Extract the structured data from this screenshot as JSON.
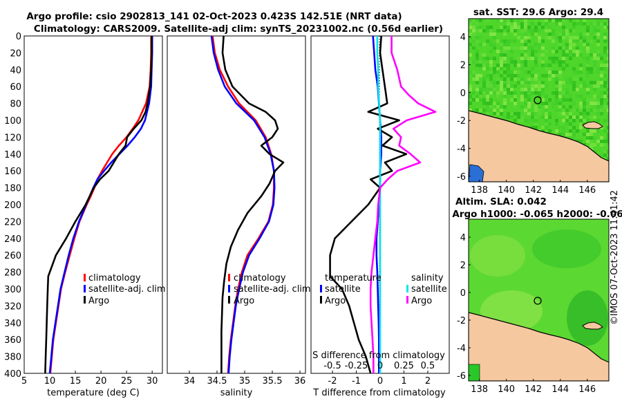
{
  "header": {
    "title_line1": "Argo profile: csio 2902813_141 02-Oct-2023 0.423S 142.51E (NRT data)",
    "title_line2": "Climatology: CARS2009. Satellite-adj clim: synTS_20231002.nc (0.56d earlier)"
  },
  "depth_axis": {
    "ticks": [
      "0",
      "20",
      "40",
      "60",
      "80",
      "100",
      "120",
      "140",
      "160",
      "180",
      "200",
      "220",
      "240",
      "260",
      "280",
      "300",
      "320",
      "340",
      "360",
      "380",
      "400"
    ]
  },
  "colors": {
    "climatology": "#ff0000",
    "satellite": "#0000ff",
    "argo": "#000000",
    "sal_satellite": "#00e5ee",
    "sal_argo": "#ff00ff",
    "land": "#f5c8a0",
    "ocean_green": "#4fd62a"
  },
  "chart_data": [
    {
      "type": "line",
      "name": "temperature-profile",
      "xlabel": "temperature (deg C)",
      "ylabel": "depth (m)",
      "xlim": [
        5,
        32
      ],
      "ylim": [
        400,
        0
      ],
      "xticks": [
        "5",
        "10",
        "15",
        "20",
        "25",
        "30"
      ],
      "legend": [
        "climatology",
        "satellite-adj. clim",
        "Argo"
      ],
      "series": [
        {
          "name": "climatology",
          "depth": [
            0,
            20,
            40,
            60,
            80,
            100,
            110,
            120,
            130,
            140,
            150,
            160,
            170,
            180,
            190,
            200,
            220,
            240,
            260,
            280,
            300,
            320,
            340,
            360,
            380,
            400
          ],
          "values": [
            29.8,
            29.8,
            29.7,
            29.5,
            28.8,
            27.3,
            26.2,
            25.0,
            23.5,
            22.2,
            21.2,
            20.2,
            19.3,
            18.7,
            18.0,
            17.2,
            15.8,
            14.8,
            13.9,
            13.0,
            12.2,
            11.7,
            11.2,
            10.7,
            10.4,
            10.1
          ]
        },
        {
          "name": "satellite-adj. clim",
          "depth": [
            0,
            20,
            40,
            60,
            80,
            100,
            110,
            120,
            130,
            140,
            150,
            160,
            170,
            180,
            190,
            200,
            220,
            240,
            260,
            280,
            300,
            320,
            340,
            360,
            380,
            400
          ],
          "values": [
            30.0,
            30.0,
            29.9,
            29.8,
            29.4,
            28.6,
            27.8,
            26.6,
            25.2,
            23.6,
            22.0,
            20.6,
            19.3,
            18.5,
            17.8,
            17.1,
            15.7,
            14.6,
            13.7,
            12.9,
            12.1,
            11.6,
            11.1,
            10.6,
            10.3,
            10.0
          ]
        },
        {
          "name": "Argo",
          "depth": [
            0,
            20,
            40,
            60,
            80,
            90,
            100,
            110,
            120,
            130,
            140,
            150,
            160,
            170,
            180,
            200,
            220,
            240,
            260,
            285,
            300,
            320,
            340,
            360,
            380,
            400
          ],
          "values": [
            29.9,
            29.9,
            29.8,
            29.6,
            29.1,
            28.7,
            27.9,
            26.4,
            25.1,
            24.8,
            23.5,
            22.5,
            21.5,
            19.8,
            18.6,
            17.0,
            15.0,
            13.2,
            11.2,
            9.7,
            9.6,
            9.5,
            9.4,
            9.3,
            9.2,
            9.1
          ]
        }
      ]
    },
    {
      "type": "line",
      "name": "salinity-profile",
      "xlabel": "salinity",
      "ylim": [
        400,
        0
      ],
      "xlim": [
        33.6,
        36.1
      ],
      "xticks": [
        "34",
        "34.5",
        "35",
        "35.5",
        "36"
      ],
      "legend": [
        "climatology",
        "satellite-adj. clim",
        "Argo"
      ],
      "series": [
        {
          "name": "climatology",
          "depth": [
            0,
            20,
            40,
            60,
            80,
            100,
            120,
            140,
            160,
            180,
            200,
            220,
            240,
            260,
            280,
            300,
            320,
            340,
            360,
            380,
            400
          ],
          "values": [
            34.42,
            34.46,
            34.55,
            34.7,
            34.9,
            35.2,
            35.38,
            35.48,
            35.53,
            35.53,
            35.51,
            35.43,
            35.25,
            35.05,
            34.95,
            34.88,
            34.83,
            34.79,
            34.75,
            34.72,
            34.7
          ]
        },
        {
          "name": "satellite-adj. clim",
          "depth": [
            0,
            20,
            40,
            60,
            80,
            100,
            120,
            140,
            160,
            180,
            200,
            220,
            240,
            260,
            280,
            300,
            320,
            340,
            360,
            380,
            400
          ],
          "values": [
            34.4,
            34.44,
            34.52,
            34.64,
            34.85,
            35.17,
            35.36,
            35.47,
            35.53,
            35.54,
            35.52,
            35.44,
            35.27,
            35.08,
            34.97,
            34.9,
            34.84,
            34.8,
            34.76,
            34.73,
            34.71
          ]
        },
        {
          "name": "Argo",
          "depth": [
            0,
            20,
            40,
            60,
            80,
            90,
            100,
            110,
            120,
            130,
            140,
            150,
            160,
            175,
            190,
            210,
            230,
            250,
            270,
            290,
            310,
            330,
            350,
            370,
            390,
            400
          ],
          "values": [
            34.62,
            34.6,
            34.65,
            34.78,
            35.08,
            35.38,
            35.55,
            35.6,
            35.5,
            35.3,
            35.45,
            35.7,
            35.55,
            35.45,
            35.3,
            35.05,
            34.88,
            34.75,
            34.67,
            34.63,
            34.6,
            34.59,
            34.58,
            34.58,
            34.58,
            34.58
          ]
        }
      ]
    },
    {
      "type": "line",
      "name": "difference-profile",
      "xlabel": "T difference from climatology",
      "s_axis_label": "S difference from climatology",
      "ylim": [
        400,
        0
      ],
      "xlim": [
        -2.9,
        2.9
      ],
      "xticks": [
        "-2",
        "-1",
        "0",
        "1",
        "2"
      ],
      "s_ticks": [
        "-0.5",
        "-0.25",
        "0",
        "0.25",
        "0.5"
      ],
      "legend_temperature": [
        "temperature",
        "satellite",
        "Argo"
      ],
      "legend_salinity": [
        "salinity",
        "satellite",
        "Argo"
      ],
      "series": [
        {
          "name": "temperature satellite",
          "depth": [
            0,
            20,
            40,
            60,
            80,
            100,
            120,
            140,
            160,
            180,
            200,
            220,
            240,
            260,
            280,
            300,
            320,
            340,
            360,
            380,
            400
          ],
          "values": [
            -0.3,
            -0.25,
            -0.2,
            -0.1,
            -0.05,
            0.0,
            0.05,
            0.05,
            0.0,
            0.0,
            -0.05,
            -0.1,
            -0.15,
            -0.15,
            -0.12,
            -0.1,
            -0.08,
            -0.06,
            -0.05,
            -0.05,
            -0.05
          ]
        },
        {
          "name": "temperature Argo",
          "depth": [
            0,
            20,
            40,
            60,
            80,
            90,
            100,
            110,
            120,
            130,
            140,
            150,
            160,
            170,
            180,
            200,
            220,
            240,
            260,
            285,
            300,
            320,
            340,
            360,
            380,
            400
          ],
          "values": [
            0.05,
            0.0,
            0.1,
            0.2,
            0.3,
            -0.5,
            0.8,
            -0.1,
            0.5,
            0.1,
            1.1,
            0.2,
            0.5,
            -0.4,
            0.0,
            -0.5,
            -1.2,
            -1.9,
            -2.1,
            -2.1,
            -1.6,
            -1.3,
            -1.1,
            -0.9,
            -0.6,
            -0.4
          ]
        },
        {
          "name": "salinity satellite",
          "depth": [
            0,
            20,
            40,
            60,
            80,
            100,
            120,
            140,
            160,
            180,
            200,
            220,
            240,
            260,
            280,
            300,
            320,
            340,
            360,
            380,
            400
          ],
          "values": [
            -0.03,
            -0.03,
            -0.02,
            -0.02,
            -0.01,
            0.0,
            0.0,
            0.0,
            0.0,
            0.0,
            0.0,
            0.0,
            0.0,
            0.0,
            0.0,
            0.0,
            0.0,
            0.0,
            0.0,
            0.0,
            0.0
          ]
        },
        {
          "name": "salinity Argo",
          "depth": [
            0,
            20,
            40,
            60,
            70,
            80,
            90,
            100,
            110,
            120,
            130,
            140,
            150,
            160,
            170,
            180,
            200,
            220,
            240,
            260,
            280,
            300,
            320,
            340,
            360,
            380,
            400
          ],
          "values": [
            0.12,
            0.12,
            0.18,
            0.22,
            0.3,
            0.4,
            0.58,
            0.28,
            0.14,
            0.22,
            0.2,
            0.32,
            0.42,
            0.18,
            0.08,
            0.0,
            -0.02,
            -0.03,
            -0.05,
            -0.07,
            -0.09,
            -0.1,
            -0.1,
            -0.09,
            -0.08,
            -0.07,
            -0.07
          ]
        }
      ]
    },
    {
      "type": "heatmap",
      "name": "sst-map",
      "title": "sat. SST: 29.6 Argo: 29.4",
      "xticks": [
        "138",
        "140",
        "142",
        "144",
        "146"
      ],
      "yticks": [
        "4",
        "2",
        "0",
        "-2",
        "-4",
        "-6"
      ],
      "xlim": [
        137.2,
        147.6
      ],
      "ylim": [
        -6.4,
        5.3
      ],
      "argo_position": {
        "lon": 142.51,
        "lat": -0.423
      }
    },
    {
      "type": "heatmap",
      "name": "sla-map",
      "title_line1": "Altim. SLA: 0.042",
      "title_line2": "Argo h1000: -0.065 h2000: -0.06",
      "xticks": [
        "138",
        "140",
        "142",
        "144",
        "146"
      ],
      "yticks": [
        "4",
        "2",
        "0",
        "-2",
        "-4",
        "-6"
      ],
      "xlim": [
        137.2,
        147.6
      ],
      "ylim": [
        -6.4,
        5.3
      ],
      "argo_position": {
        "lon": 142.51,
        "lat": -0.423
      }
    }
  ],
  "footer": {
    "copyright": "©IMOS 07-Oct-2023 11:41:42"
  }
}
